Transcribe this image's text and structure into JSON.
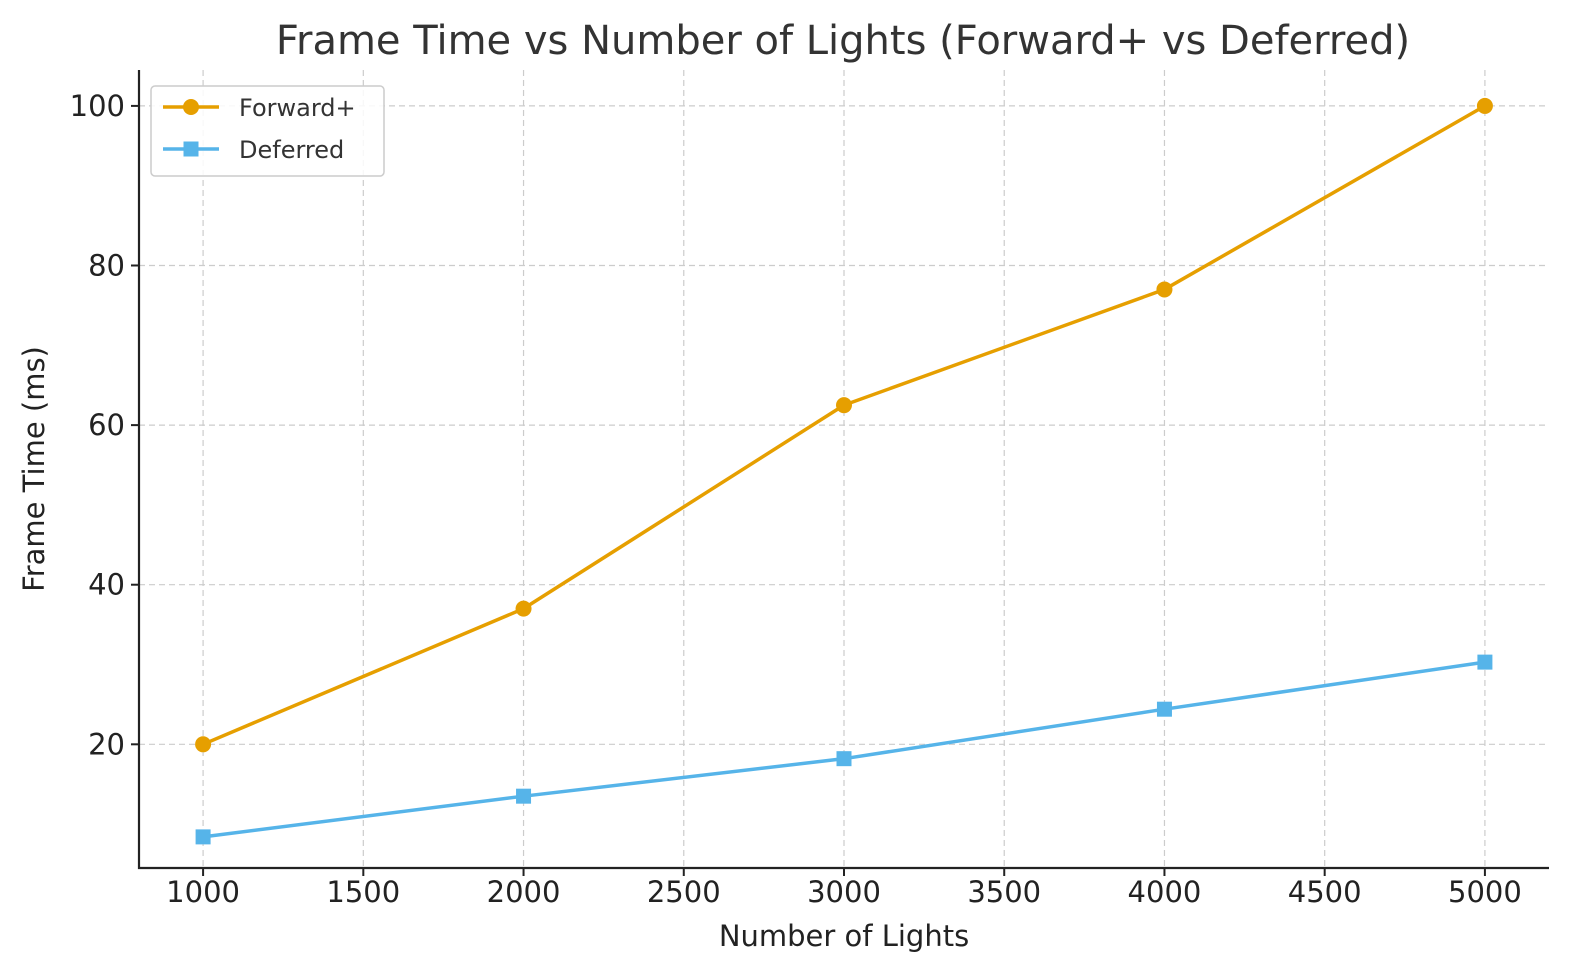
{
  "chart_data": {
    "type": "line",
    "title": "Frame Time vs Number of Lights (Forward+ vs Deferred)",
    "xlabel": "Number of Lights",
    "ylabel": "Frame Time (ms)",
    "x": [
      1000,
      2000,
      3000,
      4000,
      5000
    ],
    "xlim": [
      800,
      5200
    ],
    "ylim": [
      4.5,
      104.5
    ],
    "xticks": [
      1000,
      1500,
      2000,
      2500,
      3000,
      3500,
      4000,
      4500,
      5000
    ],
    "yticks": [
      20,
      40,
      60,
      80,
      100
    ],
    "grid": true,
    "legend_position": "top-left",
    "series": [
      {
        "name": "Forward+",
        "values": [
          20,
          37,
          62.5,
          77,
          100
        ],
        "color": "#E69F00",
        "marker": "circle"
      },
      {
        "name": "Deferred",
        "values": [
          8.4,
          13.5,
          18.2,
          24.4,
          30.3
        ],
        "color": "#56B4E9",
        "marker": "square"
      }
    ]
  }
}
